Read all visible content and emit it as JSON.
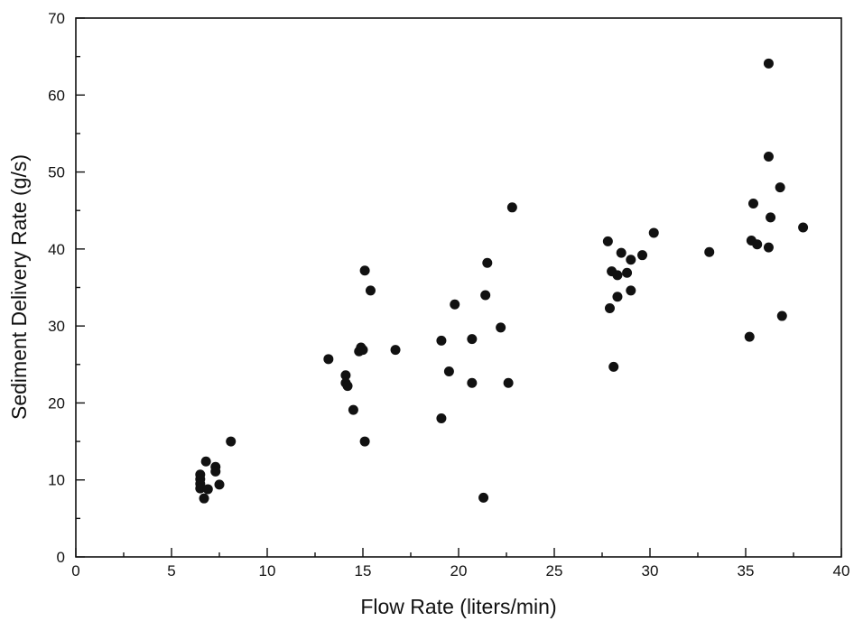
{
  "chart_data": {
    "type": "scatter",
    "xlabel": "Flow Rate (liters/min)",
    "ylabel": "Sediment Delivery Rate (g/s)",
    "xlim": [
      0,
      40
    ],
    "ylim": [
      0,
      70
    ],
    "x_ticks": [
      "0",
      "5",
      "10",
      "15",
      "20",
      "25",
      "30",
      "35",
      "40"
    ],
    "y_ticks": [
      "0",
      "10",
      "20",
      "30",
      "40",
      "50",
      "60",
      "70"
    ],
    "grid": false,
    "marker_color": "#111111",
    "points": [
      [
        6.5,
        10.7
      ],
      [
        6.5,
        10.1
      ],
      [
        6.5,
        9.5
      ],
      [
        6.5,
        8.9
      ],
      [
        6.7,
        7.6
      ],
      [
        6.8,
        12.4
      ],
      [
        6.9,
        8.8
      ],
      [
        7.3,
        11.7
      ],
      [
        7.3,
        11.1
      ],
      [
        7.5,
        9.4
      ],
      [
        8.1,
        15.0
      ],
      [
        13.2,
        25.7
      ],
      [
        14.1,
        23.6
      ],
      [
        14.1,
        22.6
      ],
      [
        14.2,
        22.2
      ],
      [
        14.5,
        19.1
      ],
      [
        14.8,
        26.7
      ],
      [
        14.9,
        27.2
      ],
      [
        15.0,
        26.9
      ],
      [
        15.1,
        37.2
      ],
      [
        15.1,
        15.0
      ],
      [
        15.4,
        34.6
      ],
      [
        16.7,
        26.9
      ],
      [
        19.1,
        28.1
      ],
      [
        19.1,
        18.0
      ],
      [
        19.5,
        24.1
      ],
      [
        19.8,
        32.8
      ],
      [
        20.7,
        28.3
      ],
      [
        20.7,
        22.6
      ],
      [
        21.3,
        7.7
      ],
      [
        21.4,
        34.0
      ],
      [
        21.5,
        38.2
      ],
      [
        22.2,
        29.8
      ],
      [
        22.6,
        22.6
      ],
      [
        22.8,
        45.4
      ],
      [
        27.8,
        41.0
      ],
      [
        27.9,
        32.3
      ],
      [
        28.0,
        37.1
      ],
      [
        28.1,
        24.7
      ],
      [
        28.3,
        36.6
      ],
      [
        28.3,
        33.8
      ],
      [
        28.5,
        39.5
      ],
      [
        28.8,
        36.9
      ],
      [
        29.0,
        34.6
      ],
      [
        29.0,
        38.6
      ],
      [
        29.6,
        39.2
      ],
      [
        30.2,
        42.1
      ],
      [
        33.1,
        39.6
      ],
      [
        35.2,
        28.6
      ],
      [
        35.3,
        41.1
      ],
      [
        35.4,
        45.9
      ],
      [
        35.6,
        40.6
      ],
      [
        36.2,
        64.1
      ],
      [
        36.2,
        52.0
      ],
      [
        36.2,
        40.2
      ],
      [
        36.3,
        44.1
      ],
      [
        36.8,
        48.0
      ],
      [
        36.9,
        31.3
      ],
      [
        38.0,
        42.8
      ]
    ]
  }
}
